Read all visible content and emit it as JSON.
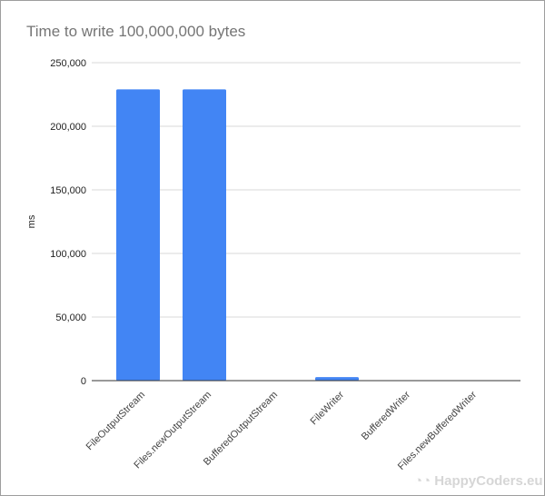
{
  "chart_data": {
    "type": "bar",
    "title": "Time to write 100,000,000 bytes",
    "xlabel": "",
    "ylabel": "ms",
    "ylim": [
      0,
      250000
    ],
    "yticks": [
      "0",
      "50,000",
      "100,000",
      "150,000",
      "200,000",
      "250,000"
    ],
    "grid": true,
    "categories": [
      "FileOutputStream",
      "Files.newOutputStream",
      "BufferedOutputStream",
      "FileWriter",
      "BufferedWriter",
      "Files.newBufferedWriter"
    ],
    "values": [
      229000,
      229000,
      150,
      2800,
      150,
      150
    ],
    "bar_color": "#4285f4"
  },
  "watermark": "HappyCoders.eu"
}
